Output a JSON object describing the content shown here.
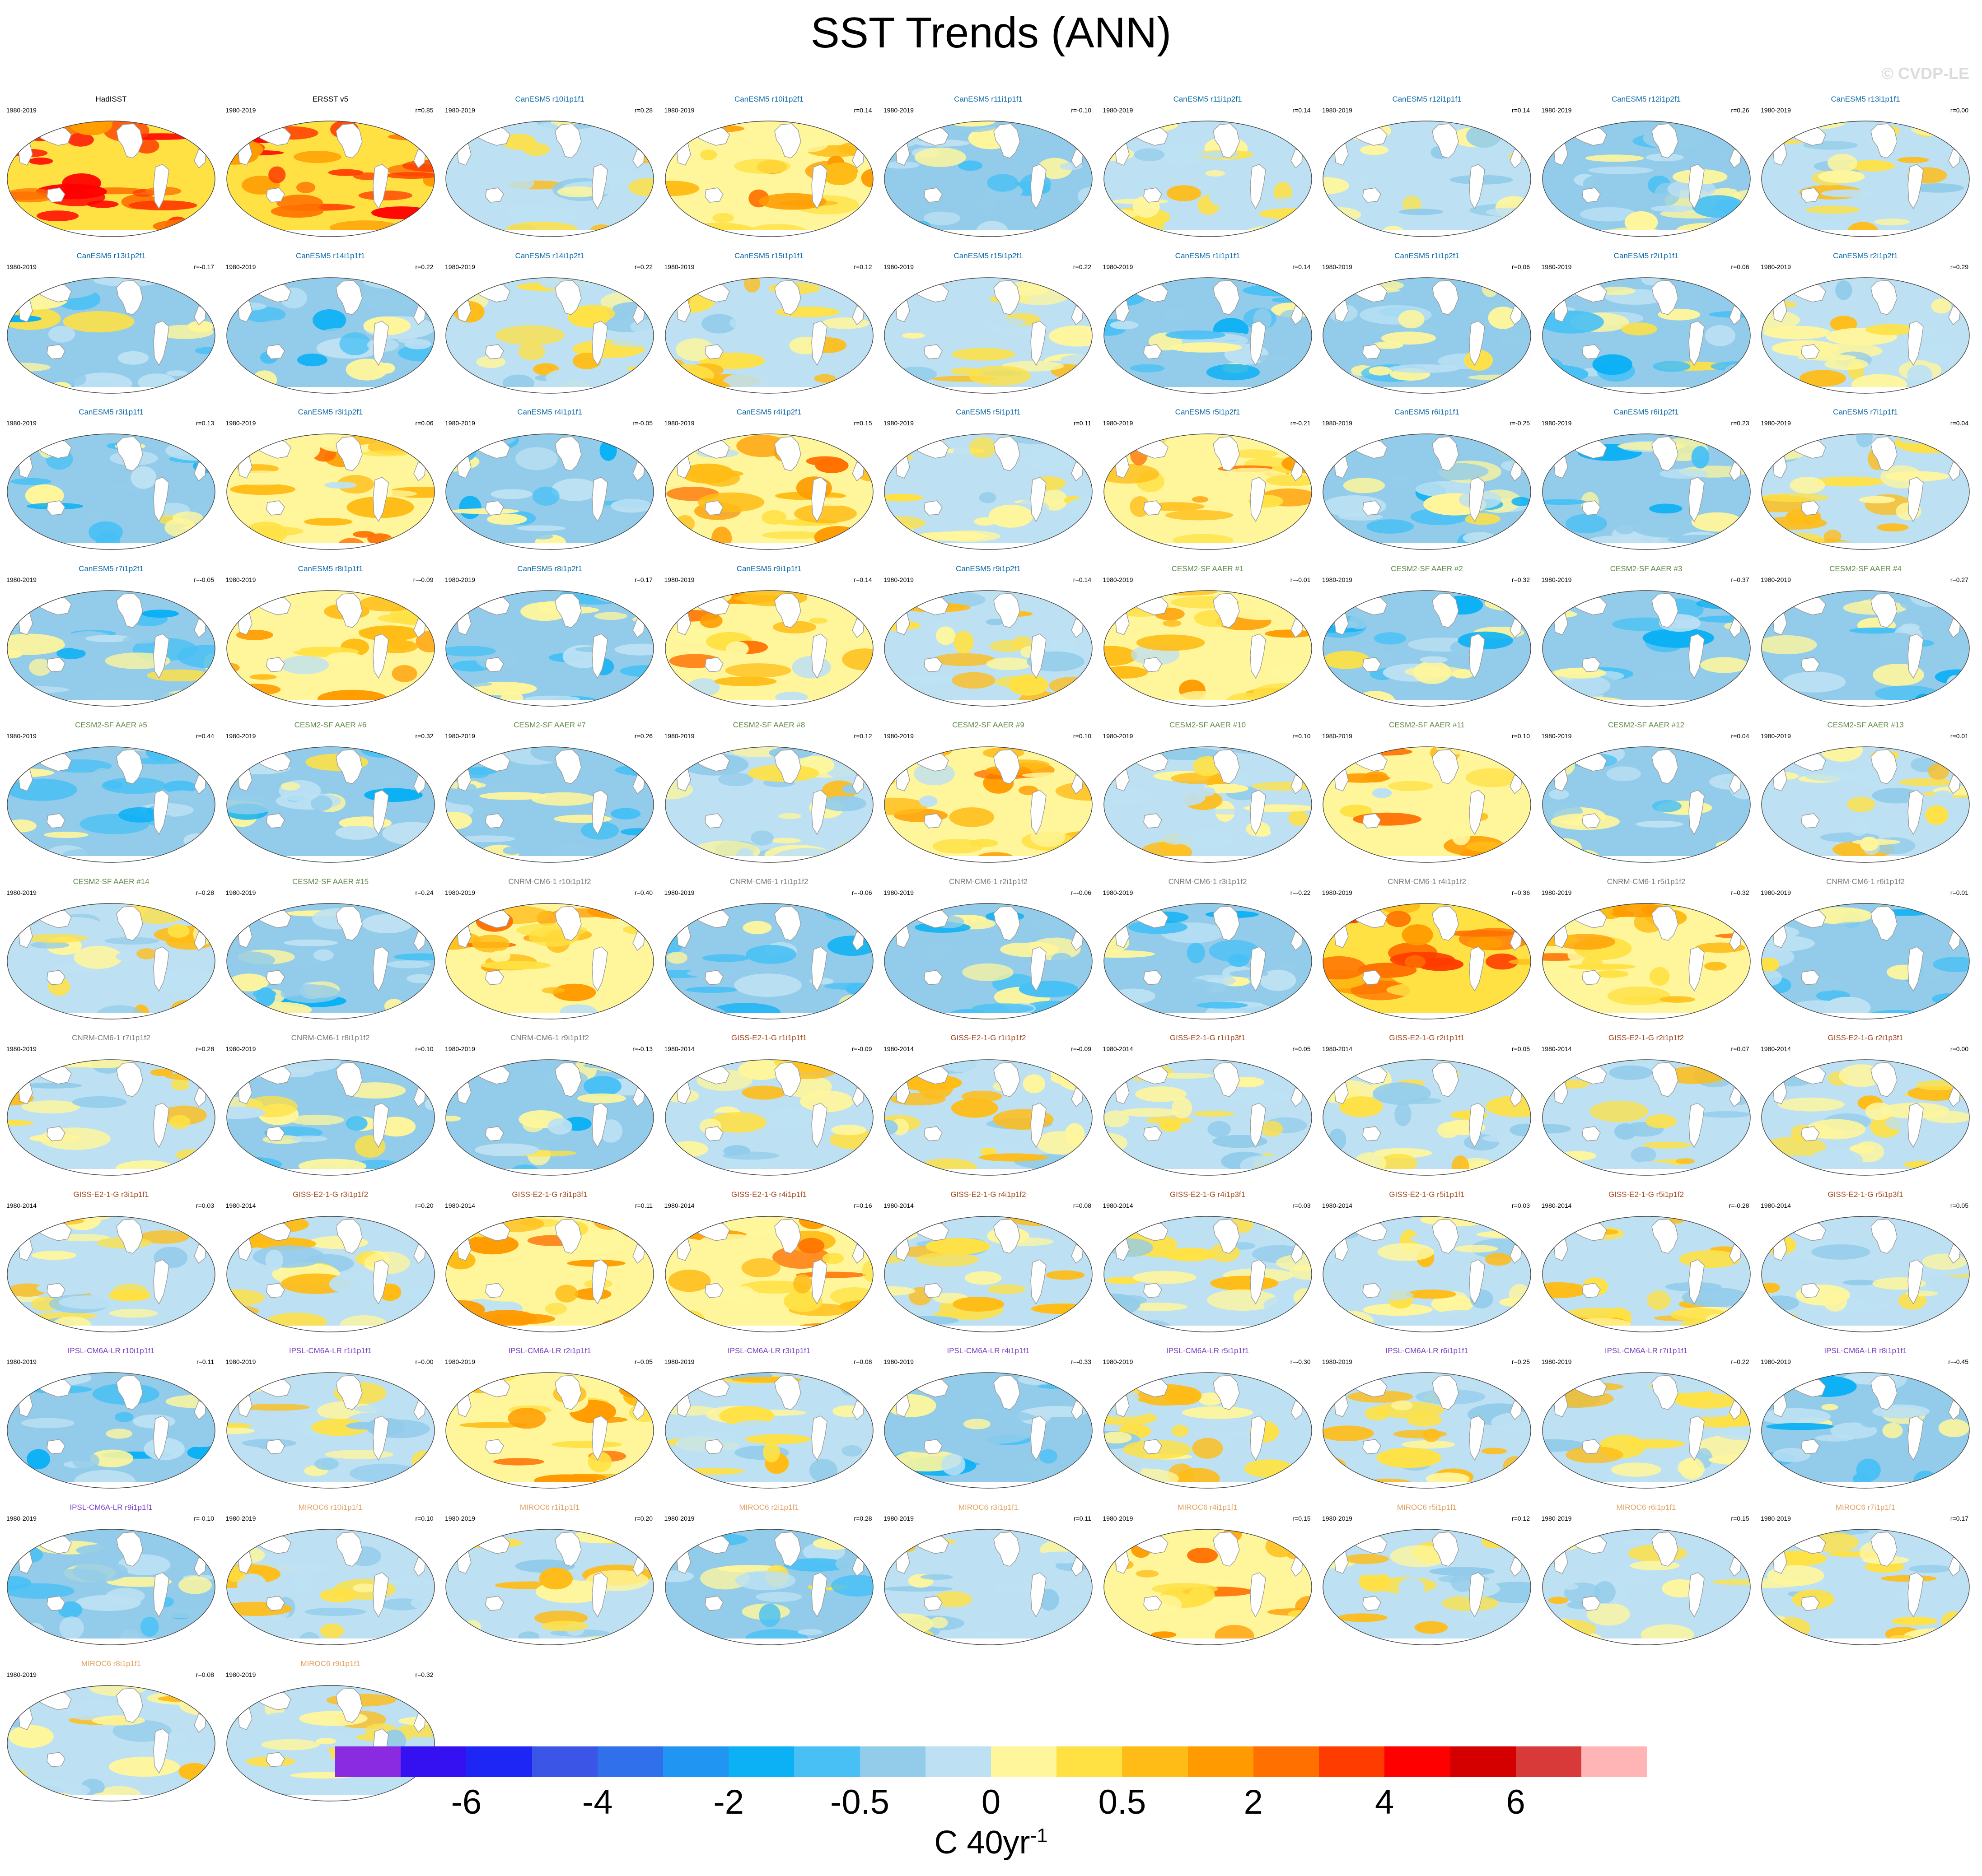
{
  "title": "SST Trends (ANN)",
  "watermark": "© CVDP-LE",
  "colorbar": {
    "colors": [
      "#8a2be2",
      "#3510f0",
      "#1e26f5",
      "#3b56e6",
      "#3070ea",
      "#2195f2",
      "#0bb0f5",
      "#48c0f5",
      "#93ccea",
      "#bde1f3",
      "#fff69c",
      "#ffe144",
      "#ffbc16",
      "#ff9b00",
      "#ff7000",
      "#ff3c00",
      "#ff0000",
      "#d40000",
      "#d83a3a",
      "#ffb5b5"
    ],
    "ticks": [
      "-6",
      "-4",
      "-2",
      "-0.5",
      "0",
      "0.5",
      "2",
      "4",
      "6"
    ],
    "unit": "C 40yr",
    "unit_exponent": "-1"
  },
  "panels": [
    {
      "name": "HadISST",
      "years": "1980-2019",
      "corr": "",
      "color": "#000000",
      "w": 3
    },
    {
      "name": "ERSST v5",
      "years": "1980-2019",
      "corr": "r=0.85",
      "color": "#000000",
      "w": 3
    },
    {
      "name": "CanESM5 r10i1p1f1",
      "years": "1980-2019",
      "corr": "r=0.28",
      "color": "#0c6aa8",
      "w": 0
    },
    {
      "name": "CanESM5 r10i1p2f1",
      "years": "1980-2019",
      "corr": "r=0.14",
      "color": "#0c6aa8",
      "w": 1
    },
    {
      "name": "CanESM5 r11i1p1f1",
      "years": "1980-2019",
      "corr": "r=-0.10",
      "color": "#0c6aa8",
      "w": -1
    },
    {
      "name": "CanESM5 r11i1p2f1",
      "years": "1980-2019",
      "corr": "r=0.14",
      "color": "#0c6aa8",
      "w": 0
    },
    {
      "name": "CanESM5 r12i1p1f1",
      "years": "1980-2019",
      "corr": "r=0.14",
      "color": "#0c6aa8",
      "w": 0
    },
    {
      "name": "CanESM5 r12i1p2f1",
      "years": "1980-2019",
      "corr": "r=0.26",
      "color": "#0c6aa8",
      "w": -1
    },
    {
      "name": "CanESM5 r13i1p1f1",
      "years": "1980-2019",
      "corr": "r=0.00",
      "color": "#0c6aa8",
      "w": 0
    },
    {
      "name": "CanESM5 r13i1p2f1",
      "years": "1980-2019",
      "corr": "r=-0.17",
      "color": "#0c6aa8",
      "w": -1
    },
    {
      "name": "CanESM5 r14i1p1f1",
      "years": "1980-2019",
      "corr": "r=0.22",
      "color": "#0c6aa8",
      "w": -1
    },
    {
      "name": "CanESM5 r14i1p2f1",
      "years": "1980-2019",
      "corr": "r=0.22",
      "color": "#0c6aa8",
      "w": 0
    },
    {
      "name": "CanESM5 r15i1p1f1",
      "years": "1980-2019",
      "corr": "r=0.12",
      "color": "#0c6aa8",
      "w": 0
    },
    {
      "name": "CanESM5 r15i1p2f1",
      "years": "1980-2019",
      "corr": "r=0.22",
      "color": "#0c6aa8",
      "w": 0
    },
    {
      "name": "CanESM5 r1i1p1f1",
      "years": "1980-2019",
      "corr": "r=0.14",
      "color": "#0c6aa8",
      "w": -1
    },
    {
      "name": "CanESM5 r1i1p2f1",
      "years": "1980-2019",
      "corr": "r=0.06",
      "color": "#0c6aa8",
      "w": -1
    },
    {
      "name": "CanESM5 r2i1p1f1",
      "years": "1980-2019",
      "corr": "r=0.06",
      "color": "#0c6aa8",
      "w": -1
    },
    {
      "name": "CanESM5 r2i1p2f1",
      "years": "1980-2019",
      "corr": "r=0.29",
      "color": "#0c6aa8",
      "w": 0
    },
    {
      "name": "CanESM5 r3i1p1f1",
      "years": "1980-2019",
      "corr": "r=0.13",
      "color": "#0c6aa8",
      "w": -1
    },
    {
      "name": "CanESM5 r3i1p2f1",
      "years": "1980-2019",
      "corr": "r=0.06",
      "color": "#0c6aa8",
      "w": 1
    },
    {
      "name": "CanESM5 r4i1p1f1",
      "years": "1980-2019",
      "corr": "r=-0.05",
      "color": "#0c6aa8",
      "w": -1
    },
    {
      "name": "CanESM5 r4i1p2f1",
      "years": "1980-2019",
      "corr": "r=0.15",
      "color": "#0c6aa8",
      "w": 1
    },
    {
      "name": "CanESM5 r5i1p1f1",
      "years": "1980-2019",
      "corr": "r=0.11",
      "color": "#0c6aa8",
      "w": 0
    },
    {
      "name": "CanESM5 r5i1p2f1",
      "years": "1980-2019",
      "corr": "r=-0.21",
      "color": "#0c6aa8",
      "w": 1
    },
    {
      "name": "CanESM5 r6i1p1f1",
      "years": "1980-2019",
      "corr": "r=-0.25",
      "color": "#0c6aa8",
      "w": -1
    },
    {
      "name": "CanESM5 r6i1p2f1",
      "years": "1980-2019",
      "corr": "r=0.23",
      "color": "#0c6aa8",
      "w": -1
    },
    {
      "name": "CanESM5 r7i1p1f1",
      "years": "1980-2019",
      "corr": "r=0.04",
      "color": "#0c6aa8",
      "w": 0
    },
    {
      "name": "CanESM5 r7i1p2f1",
      "years": "1980-2019",
      "corr": "r=-0.05",
      "color": "#0c6aa8",
      "w": -1
    },
    {
      "name": "CanESM5 r8i1p1f1",
      "years": "1980-2019",
      "corr": "r=-0.09",
      "color": "#0c6aa8",
      "w": 1
    },
    {
      "name": "CanESM5 r8i1p2f1",
      "years": "1980-2019",
      "corr": "r=0.17",
      "color": "#0c6aa8",
      "w": -1
    },
    {
      "name": "CanESM5 r9i1p1f1",
      "years": "1980-2019",
      "corr": "r=0.14",
      "color": "#0c6aa8",
      "w": 1
    },
    {
      "name": "CanESM5 r9i1p2f1",
      "years": "1980-2019",
      "corr": "r=0.14",
      "color": "#0c6aa8",
      "w": 0
    },
    {
      "name": "CESM2-SF AAER #1",
      "years": "1980-2019",
      "corr": "r=-0.01",
      "color": "#5e8a49",
      "w": 1
    },
    {
      "name": "CESM2-SF AAER #2",
      "years": "1980-2019",
      "corr": "r=0.32",
      "color": "#5e8a49",
      "w": -1
    },
    {
      "name": "CESM2-SF AAER #3",
      "years": "1980-2019",
      "corr": "r=0.37",
      "color": "#5e8a49",
      "w": -1
    },
    {
      "name": "CESM2-SF AAER #4",
      "years": "1980-2019",
      "corr": "r=0.27",
      "color": "#5e8a49",
      "w": -1
    },
    {
      "name": "CESM2-SF AAER #5",
      "years": "1980-2019",
      "corr": "r=0.44",
      "color": "#5e8a49",
      "w": -1
    },
    {
      "name": "CESM2-SF AAER #6",
      "years": "1980-2019",
      "corr": "r=0.32",
      "color": "#5e8a49",
      "w": -1
    },
    {
      "name": "CESM2-SF AAER #7",
      "years": "1980-2019",
      "corr": "r=0.26",
      "color": "#5e8a49",
      "w": -1
    },
    {
      "name": "CESM2-SF AAER #8",
      "years": "1980-2019",
      "corr": "r=0.12",
      "color": "#5e8a49",
      "w": 0
    },
    {
      "name": "CESM2-SF AAER #9",
      "years": "1980-2019",
      "corr": "r=0.10",
      "color": "#5e8a49",
      "w": 1
    },
    {
      "name": "CESM2-SF AAER #10",
      "years": "1980-2019",
      "corr": "r=0.10",
      "color": "#5e8a49",
      "w": 0
    },
    {
      "name": "CESM2-SF AAER #11",
      "years": "1980-2019",
      "corr": "r=0.10",
      "color": "#5e8a49",
      "w": 1
    },
    {
      "name": "CESM2-SF AAER #12",
      "years": "1980-2019",
      "corr": "r=0.04",
      "color": "#5e8a49",
      "w": -1
    },
    {
      "name": "CESM2-SF AAER #13",
      "years": "1980-2019",
      "corr": "r=0.01",
      "color": "#5e8a49",
      "w": 0
    },
    {
      "name": "CESM2-SF AAER #14",
      "years": "1980-2019",
      "corr": "r=0.28",
      "color": "#5e8a49",
      "w": 0
    },
    {
      "name": "CESM2-SF AAER #15",
      "years": "1980-2019",
      "corr": "r=0.24",
      "color": "#5e8a49",
      "w": -1
    },
    {
      "name": "CNRM-CM6-1 r10i1p1f2",
      "years": "1980-2019",
      "corr": "r=0.40",
      "color": "#7a7a7a",
      "w": 1
    },
    {
      "name": "CNRM-CM6-1 r1i1p1f2",
      "years": "1980-2019",
      "corr": "r=-0.06",
      "color": "#7a7a7a",
      "w": -1
    },
    {
      "name": "CNRM-CM6-1 r2i1p1f2",
      "years": "1980-2019",
      "corr": "r=-0.06",
      "color": "#7a7a7a",
      "w": -1
    },
    {
      "name": "CNRM-CM6-1 r3i1p1f2",
      "years": "1980-2019",
      "corr": "r=-0.22",
      "color": "#7a7a7a",
      "w": -1
    },
    {
      "name": "CNRM-CM6-1 r4i1p1f2",
      "years": "1980-2019",
      "corr": "r=0.36",
      "color": "#7a7a7a",
      "w": 2
    },
    {
      "name": "CNRM-CM6-1 r5i1p1f2",
      "years": "1980-2019",
      "corr": "r=0.32",
      "color": "#7a7a7a",
      "w": 1
    },
    {
      "name": "CNRM-CM6-1 r6i1p1f2",
      "years": "1980-2019",
      "corr": "r=0.01",
      "color": "#7a7a7a",
      "w": -1
    },
    {
      "name": "CNRM-CM6-1 r7i1p1f2",
      "years": "1980-2019",
      "corr": "r=0.28",
      "color": "#7a7a7a",
      "w": 0
    },
    {
      "name": "CNRM-CM6-1 r8i1p1f2",
      "years": "1980-2019",
      "corr": "r=0.10",
      "color": "#7a7a7a",
      "w": -1
    },
    {
      "name": "CNRM-CM6-1 r9i1p1f2",
      "years": "1980-2019",
      "corr": "r=-0.13",
      "color": "#7a7a7a",
      "w": -1
    },
    {
      "name": "GISS-E2-1-G r1i1p1f1",
      "years": "1980-2014",
      "corr": "r=-0.09",
      "color": "#a3461d",
      "w": 0
    },
    {
      "name": "GISS-E2-1-G r1i1p1f2",
      "years": "1980-2014",
      "corr": "r=-0.09",
      "color": "#a3461d",
      "w": 0
    },
    {
      "name": "GISS-E2-1-G r1i1p3f1",
      "years": "1980-2014",
      "corr": "r=0.05",
      "color": "#a3461d",
      "w": 0
    },
    {
      "name": "GISS-E2-1-G r2i1p1f1",
      "years": "1980-2014",
      "corr": "r=0.05",
      "color": "#a3461d",
      "w": 0
    },
    {
      "name": "GISS-E2-1-G r2i1p1f2",
      "years": "1980-2014",
      "corr": "r=0.07",
      "color": "#a3461d",
      "w": 0
    },
    {
      "name": "GISS-E2-1-G r2i1p3f1",
      "years": "1980-2014",
      "corr": "r=0.00",
      "color": "#a3461d",
      "w": 0
    },
    {
      "name": "GISS-E2-1-G r3i1p1f1",
      "years": "1980-2014",
      "corr": "r=0.03",
      "color": "#a3461d",
      "w": 0
    },
    {
      "name": "GISS-E2-1-G r3i1p1f2",
      "years": "1980-2014",
      "corr": "r=0.20",
      "color": "#a3461d",
      "w": 0
    },
    {
      "name": "GISS-E2-1-G r3i1p3f1",
      "years": "1980-2014",
      "corr": "r=0.11",
      "color": "#a3461d",
      "w": 1
    },
    {
      "name": "GISS-E2-1-G r4i1p1f1",
      "years": "1980-2014",
      "corr": "r=0.16",
      "color": "#a3461d",
      "w": 1
    },
    {
      "name": "GISS-E2-1-G r4i1p1f2",
      "years": "1980-2014",
      "corr": "r=0.08",
      "color": "#a3461d",
      "w": 0
    },
    {
      "name": "GISS-E2-1-G r4i1p3f1",
      "years": "1980-2014",
      "corr": "r=0.03",
      "color": "#a3461d",
      "w": 0
    },
    {
      "name": "GISS-E2-1-G r5i1p1f1",
      "years": "1980-2014",
      "corr": "r=0.03",
      "color": "#a3461d",
      "w": 0
    },
    {
      "name": "GISS-E2-1-G r5i1p1f2",
      "years": "1980-2014",
      "corr": "r=-0.28",
      "color": "#a3461d",
      "w": 0
    },
    {
      "name": "GISS-E2-1-G r5i1p3f1",
      "years": "1980-2014",
      "corr": "r=0.05",
      "color": "#a3461d",
      "w": 0
    },
    {
      "name": "IPSL-CM6A-LR r10i1p1f1",
      "years": "1980-2019",
      "corr": "r=0.11",
      "color": "#7a3fc4",
      "w": -1
    },
    {
      "name": "IPSL-CM6A-LR r1i1p1f1",
      "years": "1980-2019",
      "corr": "r=0.00",
      "color": "#7a3fc4",
      "w": 0
    },
    {
      "name": "IPSL-CM6A-LR r2i1p1f1",
      "years": "1980-2019",
      "corr": "r=0.05",
      "color": "#7a3fc4",
      "w": 1
    },
    {
      "name": "IPSL-CM6A-LR r3i1p1f1",
      "years": "1980-2019",
      "corr": "r=0.08",
      "color": "#7a3fc4",
      "w": 0
    },
    {
      "name": "IPSL-CM6A-LR r4i1p1f1",
      "years": "1980-2019",
      "corr": "r=-0.33",
      "color": "#7a3fc4",
      "w": -1
    },
    {
      "name": "IPSL-CM6A-LR r5i1p1f1",
      "years": "1980-2019",
      "corr": "r=-0.30",
      "color": "#7a3fc4",
      "w": 0
    },
    {
      "name": "IPSL-CM6A-LR r6i1p1f1",
      "years": "1980-2019",
      "corr": "r=0.25",
      "color": "#7a3fc4",
      "w": 0
    },
    {
      "name": "IPSL-CM6A-LR r7i1p1f1",
      "years": "1980-2019",
      "corr": "r=0.22",
      "color": "#7a3fc4",
      "w": 0
    },
    {
      "name": "IPSL-CM6A-LR r8i1p1f1",
      "years": "1980-2019",
      "corr": "r=-0.45",
      "color": "#7a3fc4",
      "w": -1
    },
    {
      "name": "IPSL-CM6A-LR r9i1p1f1",
      "years": "1980-2019",
      "corr": "r=-0.10",
      "color": "#7a3fc4",
      "w": -1
    },
    {
      "name": "MIROC6 r10i1p1f1",
      "years": "1980-2019",
      "corr": "r=0.10",
      "color": "#e0a060",
      "w": 0
    },
    {
      "name": "MIROC6 r1i1p1f1",
      "years": "1980-2019",
      "corr": "r=0.20",
      "color": "#e0a060",
      "w": 0
    },
    {
      "name": "MIROC6 r2i1p1f1",
      "years": "1980-2019",
      "corr": "r=0.28",
      "color": "#e0a060",
      "w": -1
    },
    {
      "name": "MIROC6 r3i1p1f1",
      "years": "1980-2019",
      "corr": "r=0.11",
      "color": "#e0a060",
      "w": 0
    },
    {
      "name": "MIROC6 r4i1p1f1",
      "years": "1980-2019",
      "corr": "r=0.15",
      "color": "#e0a060",
      "w": 1
    },
    {
      "name": "MIROC6 r5i1p1f1",
      "years": "1980-2019",
      "corr": "r=0.12",
      "color": "#e0a060",
      "w": 0
    },
    {
      "name": "MIROC6 r6i1p1f1",
      "years": "1980-2019",
      "corr": "r=0.15",
      "color": "#e0a060",
      "w": 0
    },
    {
      "name": "MIROC6 r7i1p1f1",
      "years": "1980-2019",
      "corr": "r=0.17",
      "color": "#e0a060",
      "w": 0
    },
    {
      "name": "MIROC6 r8i1p1f1",
      "years": "1980-2019",
      "corr": "r=0.08",
      "color": "#e0a060",
      "w": 0
    },
    {
      "name": "MIROC6 r9i1p1f1",
      "years": "1980-2019",
      "corr": "r=0.32",
      "color": "#e0a060",
      "w": 0
    }
  ]
}
